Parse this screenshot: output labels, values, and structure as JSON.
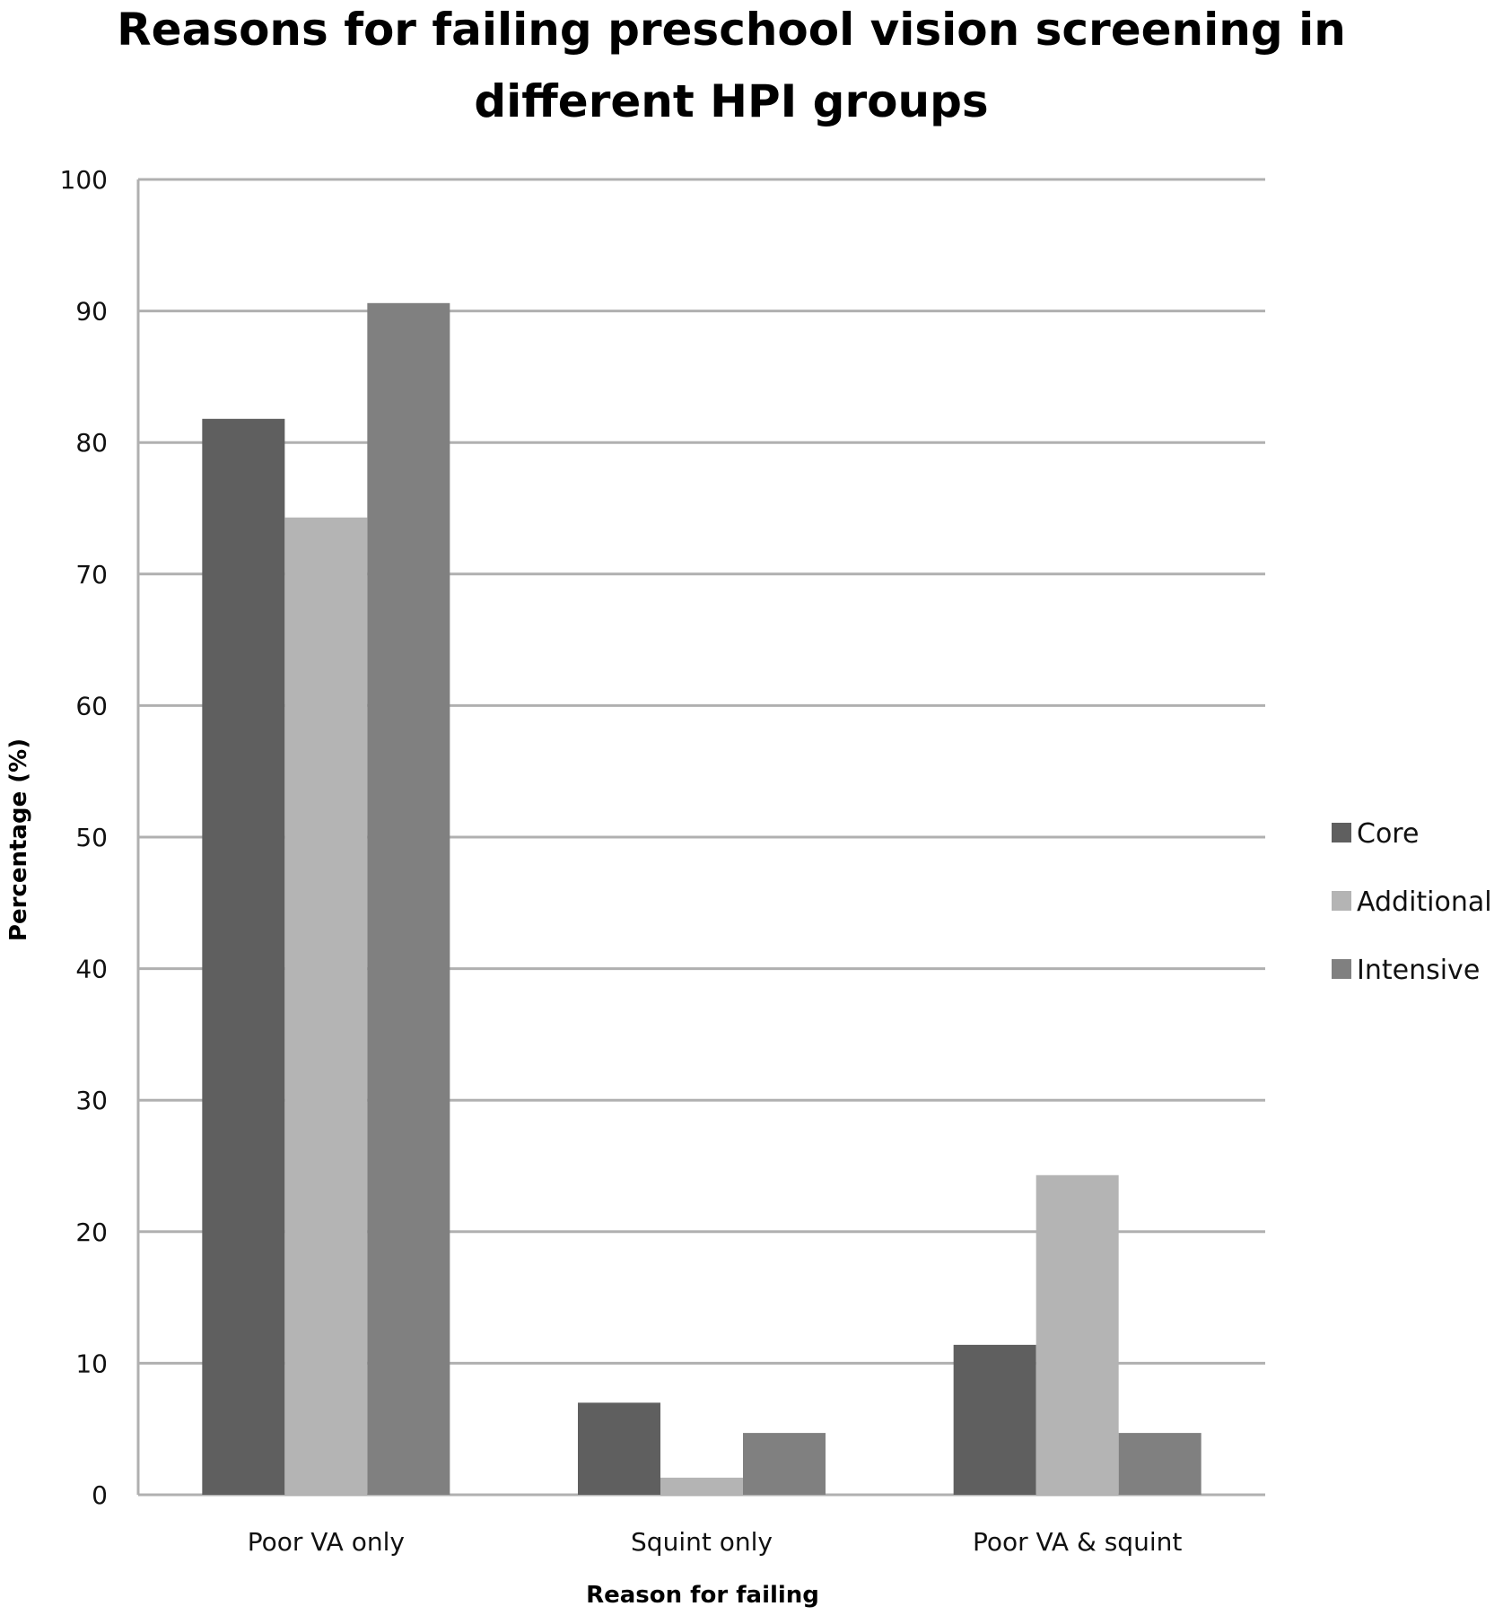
{
  "chart_data": {
    "type": "bar",
    "title": "Reasons for failing preschool vision screening in different HPI groups",
    "title_lines": [
      "Reasons for failing preschool vision screening in",
      "different HPI groups"
    ],
    "xlabel": "Reason for failing",
    "ylabel": "Percentage (%)",
    "categories": [
      "Poor VA only",
      "Squint only",
      "Poor VA & squint"
    ],
    "series": [
      {
        "name": "Core",
        "color": "#5f5f5f",
        "values": [
          81.8,
          7.0,
          11.4
        ]
      },
      {
        "name": "Additional",
        "color": "#b4b4b4",
        "values": [
          74.3,
          1.3,
          24.3
        ]
      },
      {
        "name": "Intensive",
        "color": "#808080",
        "values": [
          90.6,
          4.7,
          4.7
        ]
      }
    ],
    "ylim": [
      0,
      100
    ],
    "yticks": [
      "0",
      "10",
      "20",
      "30",
      "40",
      "50",
      "60",
      "70",
      "80",
      "90",
      "100"
    ],
    "grid": true,
    "legend_position": "right",
    "gridline_color": "#b0b0b0"
  }
}
